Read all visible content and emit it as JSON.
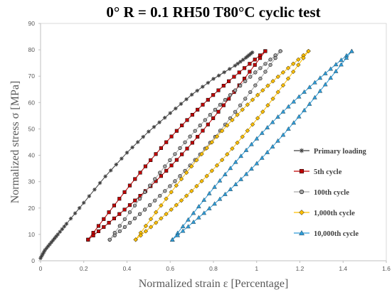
{
  "chart_data": {
    "type": "scatter",
    "title": "0° R = 0.1 RH50 T80°C cyclic test",
    "xlabel": "Normalized strain ε [Percentage]",
    "ylabel": "Normalized stress σ [MPa]",
    "xlim": [
      0,
      1.6
    ],
    "ylim": [
      0,
      90
    ],
    "xticks": [
      "0",
      "0.2",
      "0.4",
      "0.6",
      "0.8",
      "1",
      "1.2",
      "1.4",
      "1.6"
    ],
    "yticks": [
      "0",
      "10",
      "20",
      "30",
      "40",
      "50",
      "60",
      "70",
      "80",
      "90"
    ],
    "grid": false,
    "legend_position": "right",
    "series": [
      {
        "name": "Primary loading",
        "marker": "star",
        "color": "#404040",
        "loop": false,
        "x": [
          0.0,
          0.02,
          0.05,
          0.08,
          0.12,
          0.2,
          0.3,
          0.4,
          0.5,
          0.6,
          0.7,
          0.8,
          0.9,
          0.95,
          0.98
        ],
        "y": [
          1,
          4,
          7,
          10,
          14,
          22,
          32,
          41,
          49,
          56,
          63,
          69,
          74,
          77,
          79
        ]
      },
      {
        "name": "5th cycle",
        "marker": "square",
        "color": "#c00000",
        "loop": true,
        "x_min": 0.22,
        "y_min": 8,
        "x_max": 1.04,
        "y_max": 79.5,
        "bulge": 0.035
      },
      {
        "name": "100th cycle",
        "marker": "circle",
        "color": "#a6a6a6",
        "loop": true,
        "x_min": 0.32,
        "y_min": 8,
        "x_max": 1.11,
        "y_max": 79.5,
        "bulge": 0.035
      },
      {
        "name": "1,000th cycle",
        "marker": "diamond",
        "color": "#ffc000",
        "loop": true,
        "x_min": 0.44,
        "y_min": 8,
        "x_max": 1.24,
        "y_max": 79.5,
        "bulge": 0.035
      },
      {
        "name": "10,000th cycle",
        "marker": "triangle",
        "color": "#2e9bd6",
        "loop": true,
        "x_min": 0.61,
        "y_min": 8,
        "x_max": 1.44,
        "y_max": 79.5,
        "bulge": 0.03
      }
    ]
  }
}
